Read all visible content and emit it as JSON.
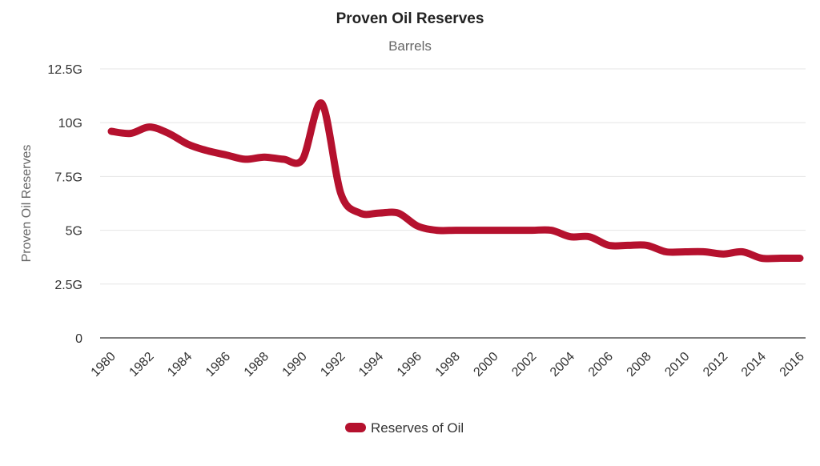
{
  "chart_data": {
    "type": "line",
    "title": "Proven Oil Reserves",
    "subtitle": "Barrels",
    "ylabel": "Proven Oil Reserves",
    "xlabel": "",
    "ylim": [
      0,
      12.5
    ],
    "y_ticks": [
      {
        "value": 0,
        "label": "0"
      },
      {
        "value": 2.5,
        "label": "2.5G"
      },
      {
        "value": 5,
        "label": "5G"
      },
      {
        "value": 7.5,
        "label": "7.5G"
      },
      {
        "value": 10,
        "label": "10G"
      },
      {
        "value": 12.5,
        "label": "12.5G"
      }
    ],
    "x_range": [
      1980,
      2016
    ],
    "x_ticks": [
      "1980",
      "1982",
      "1984",
      "1986",
      "1988",
      "1990",
      "1992",
      "1994",
      "1996",
      "1998",
      "2000",
      "2002",
      "2004",
      "2006",
      "2008",
      "2010",
      "2012",
      "2014",
      "2016"
    ],
    "grid": true,
    "legend_position": "bottom-center",
    "color": "#b5112e",
    "series": [
      {
        "name": "Reserves of Oil",
        "x": [
          1980,
          1981,
          1982,
          1983,
          1984,
          1985,
          1986,
          1987,
          1988,
          1989,
          1990,
          1991,
          1992,
          1993,
          1994,
          1995,
          1996,
          1997,
          1998,
          1999,
          2000,
          2001,
          2002,
          2003,
          2004,
          2005,
          2006,
          2007,
          2008,
          2009,
          2010,
          2011,
          2012,
          2013,
          2014,
          2015,
          2016
        ],
        "values": [
          9.6,
          9.5,
          9.8,
          9.5,
          9.0,
          8.7,
          8.5,
          8.3,
          8.4,
          8.3,
          8.3,
          10.9,
          6.7,
          5.8,
          5.8,
          5.8,
          5.2,
          5.0,
          5.0,
          5.0,
          5.0,
          5.0,
          5.0,
          5.0,
          4.7,
          4.7,
          4.3,
          4.3,
          4.3,
          4.0,
          4.0,
          4.0,
          3.9,
          4.0,
          3.7,
          3.7,
          3.7
        ]
      }
    ]
  }
}
